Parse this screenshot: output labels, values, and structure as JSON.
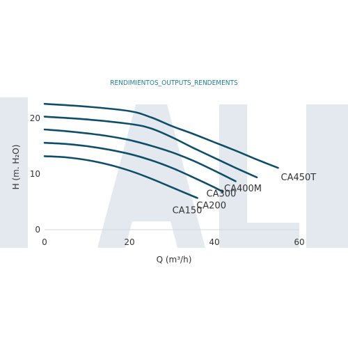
{
  "colors": {
    "curve": "#0f4e68",
    "title": "#1f7f93",
    "watermark": "#e3e9ef"
  },
  "chart_data": {
    "type": "line",
    "title": "RENDIMIENTOS_OUTPUTS_RENDEMENTS",
    "xlabel": "Q (m³/h)",
    "ylabel": "H (m. H₂O)",
    "xlim": [
      0,
      60
    ],
    "ylim": [
      0,
      24
    ],
    "xticks": [
      0,
      20,
      40,
      60
    ],
    "yticks": [
      0,
      10,
      20
    ],
    "grid": false,
    "legend": "inline-labels",
    "series": [
      {
        "name": "CA150",
        "x": [
          0,
          5,
          10,
          15,
          20,
          25,
          30,
          35,
          36
        ],
        "y": [
          13.2,
          13.0,
          12.5,
          11.7,
          10.6,
          9.2,
          7.6,
          6.0,
          5.7
        ]
      },
      {
        "name": "CA200",
        "x": [
          0,
          5,
          10,
          15,
          20,
          25,
          30,
          35,
          40,
          42
        ],
        "y": [
          15.6,
          15.4,
          15.0,
          14.4,
          13.6,
          12.5,
          11.1,
          9.4,
          7.6,
          6.8
        ]
      },
      {
        "name": "CA300",
        "x": [
          0,
          5,
          10,
          15,
          20,
          25,
          30,
          35,
          40,
          45
        ],
        "y": [
          18.0,
          17.7,
          17.3,
          16.8,
          16.1,
          15.1,
          13.9,
          12.4,
          10.6,
          8.7
        ]
      },
      {
        "name": "CA400M",
        "x": [
          0,
          10,
          20,
          25,
          30,
          35,
          40,
          45,
          50
        ],
        "y": [
          20.3,
          19.8,
          19.0,
          18.2,
          16.6,
          14.7,
          12.9,
          11.1,
          9.4
        ]
      },
      {
        "name": "CA450T",
        "x": [
          0,
          10,
          20,
          25,
          30,
          35,
          40,
          45,
          50,
          55
        ],
        "y": [
          22.6,
          22.1,
          21.3,
          20.2,
          18.6,
          17.2,
          15.7,
          14.2,
          12.6,
          11.1
        ]
      }
    ]
  }
}
